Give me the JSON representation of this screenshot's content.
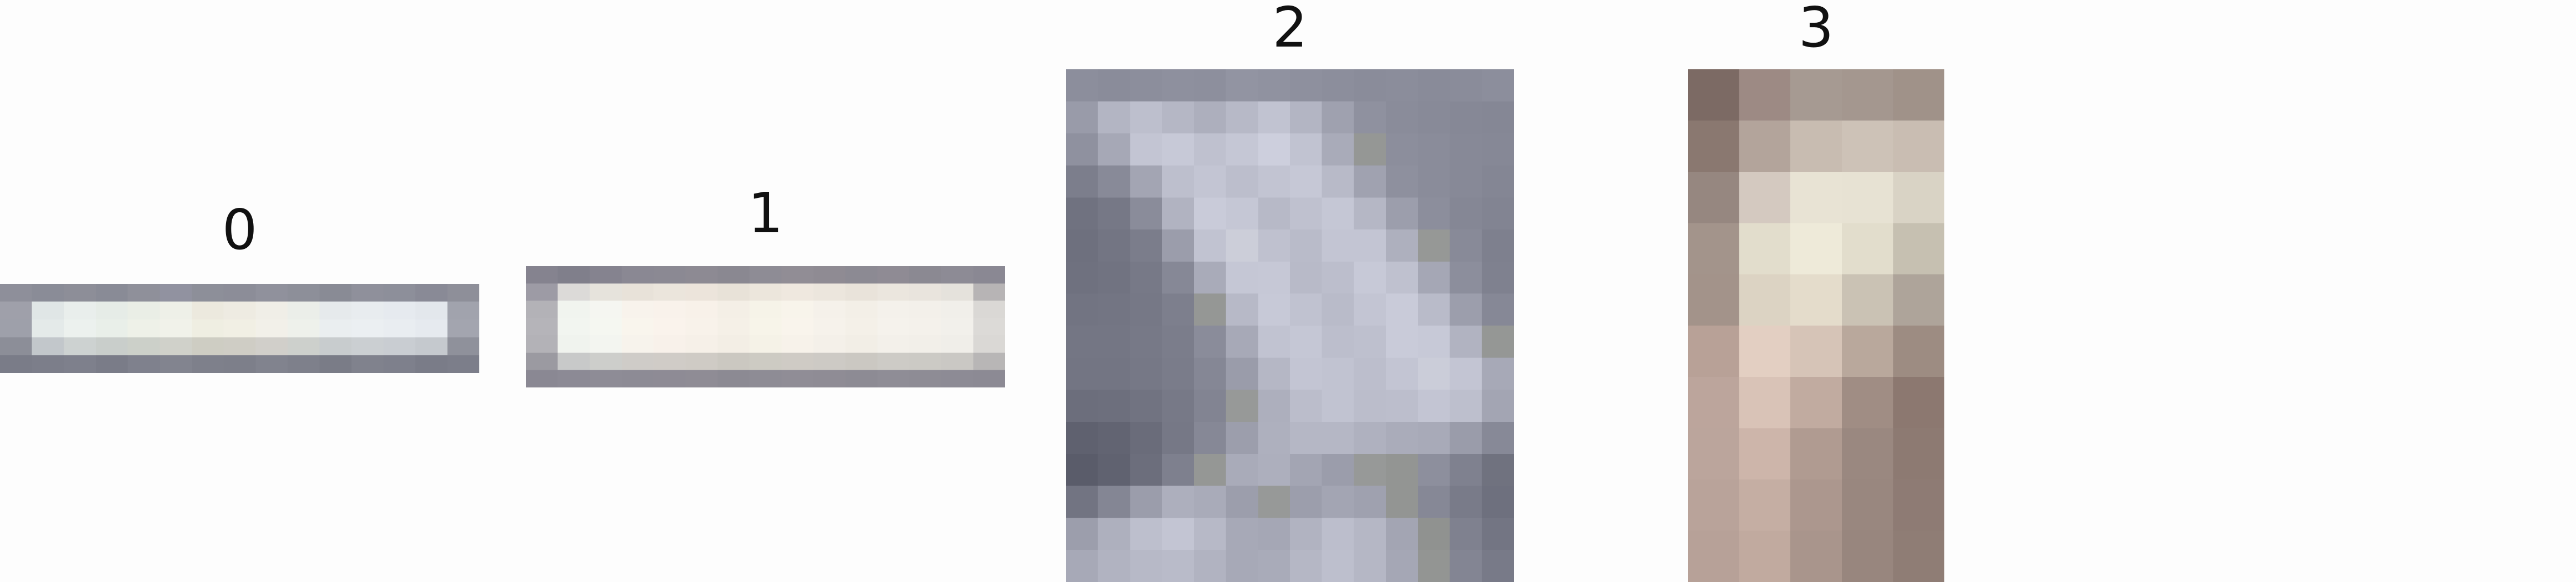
{
  "panels": [
    {
      "label": "0",
      "cols": 15,
      "pixels": [
        [
          "#8e8f9a",
          "#8a8c97",
          "#8d8e98",
          "#898b96",
          "#8f909a",
          "#9192a0",
          "#8d8f99",
          "#8c8d98",
          "#90919c",
          "#8d8f99",
          "#898b95",
          "#8f909b",
          "#8d8f9a",
          "#898a96",
          "#8e8f99"
        ],
        [
          "#9fa0aa",
          "#e0e6e6",
          "#e9eeec",
          "#e6ece7",
          "#eaeee6",
          "#eef0e8",
          "#ece9de",
          "#eeebe2",
          "#f0eee7",
          "#ebeee9",
          "#e6eaec",
          "#e8ecef",
          "#e6eaef",
          "#e3e7ec",
          "#a1a3ad"
        ],
        [
          "#9ea0aa",
          "#e4eae9",
          "#ecf1ee",
          "#e9efe9",
          "#eef1e8",
          "#f1f2ea",
          "#efeee2",
          "#f1efe4",
          "#f2f0e9",
          "#eef1eb",
          "#eaeef0",
          "#ebeff2",
          "#e9edf1",
          "#e6eaef",
          "#a3a5af"
        ],
        [
          "#8c8e98",
          "#c2c7cb",
          "#cdd2d1",
          "#c9cecb",
          "#ccd0c9",
          "#d0d1ca",
          "#cecdc3",
          "#cfcdc5",
          "#d1cfca",
          "#cdd0cc",
          "#c8ccce",
          "#cbcfd2",
          "#c9cdd2",
          "#c5c9ce",
          "#8f919b"
        ],
        [
          "#7a7c88",
          "#7c7e8a",
          "#7e808c",
          "#7a7c88",
          "#7f818d",
          "#82848f",
          "#7e808b",
          "#7d7f8a",
          "#81838e",
          "#7e808b",
          "#7a7c87",
          "#80828d",
          "#7e808c",
          "#7a7c88",
          "#7c7e8a"
        ]
      ]
    },
    {
      "label": "1",
      "cols": 15,
      "pixels": [
        [
          "#85838f",
          "#807f8b",
          "#85838f",
          "#8a8893",
          "#8b8993",
          "#8d8a93",
          "#8a8891",
          "#8e8c95",
          "#918d95",
          "#8f8b93",
          "#8c8a93",
          "#8f8b94",
          "#8b8992",
          "#8d8b95",
          "#8a8893"
        ],
        [
          "#9d9ba5",
          "#dcdad8",
          "#e6e3dc",
          "#e8e2d9",
          "#ebe5dc",
          "#ece4db",
          "#e8e2d8",
          "#ece6dc",
          "#efe8df",
          "#ece6dd",
          "#e9e3da",
          "#ebe6de",
          "#e9e4dd",
          "#e5e2dc",
          "#b7b4b5"
        ],
        [
          "#b3b2b7",
          "#f1f4ef",
          "#f5f6f1",
          "#f8f3ec",
          "#f9f2eb",
          "#f8f1e9",
          "#f4efe6",
          "#f6f3e8",
          "#f8f4eb",
          "#f5f1ea",
          "#f3efe7",
          "#f4f1eb",
          "#f3f0ea",
          "#f1efea",
          "#dad8d5"
        ],
        [
          "#b5b4b9",
          "#f2f5f0",
          "#f5f7f1",
          "#f9f5ed",
          "#faf3ec",
          "#f8f2ea",
          "#f5f0e7",
          "#f7f4e9",
          "#f9f4ec",
          "#f6f2eb",
          "#f4f0e8",
          "#f5f2ec",
          "#f4f1eb",
          "#f2f0eb",
          "#dcdad7"
        ],
        [
          "#b3b2b7",
          "#f0f3ee",
          "#f3f5f0",
          "#f7f3ec",
          "#f8f1ea",
          "#f6f0e8",
          "#f3eee5",
          "#f5f2e7",
          "#f7f2ea",
          "#f4f0e9",
          "#f2eee6",
          "#f3f0ea",
          "#f2efe9",
          "#f0eee9",
          "#dad8d5"
        ],
        [
          "#9b9aa1",
          "#c8c9c9",
          "#cdcecb",
          "#cfccc8",
          "#d0ccc7",
          "#cfcbc5",
          "#cbc8c1",
          "#cdcbc3",
          "#cfcbc5",
          "#cdcac5",
          "#cbc8c2",
          "#cdcbc6",
          "#cccac5",
          "#cac8c4",
          "#b8b6b6"
        ],
        [
          "#8a8893",
          "#8c8a95",
          "#8e8c96",
          "#8d8b95",
          "#8e8b95",
          "#8f8c95",
          "#8c8a93",
          "#8e8c95",
          "#908d96",
          "#8f8c95",
          "#8d8b94",
          "#8f8d96",
          "#8e8c95",
          "#8d8b95",
          "#8c8a94"
        ]
      ]
    },
    {
      "label": "2",
      "cols": 14,
      "pixels": [
        [
          "#8c8e9c",
          "#8a8c9a",
          "#8c8e9c",
          "#8e909e",
          "#8d8f9d",
          "#9294a2",
          "#9092a0",
          "#8e909e",
          "#8c8e9c",
          "#8a8c9a",
          "#8b8d9b",
          "#898b99",
          "#8a8c9a",
          "#8c8e9c"
        ],
        [
          "#999ba9",
          "#b3b5c3",
          "#bdbfcd",
          "#b5b7c5",
          "#adafbd",
          "#b7b9c7",
          "#c1c3d1",
          "#b3b5c3",
          "#9fa1af",
          "#8f919f",
          "#8a8c9a",
          "#888a98",
          "#868896",
          "#858795"
        ],
        [
          "#8f919f",
          "#a6a8b6",
          "#c3c5d3",
          "#c7c9d7",
          "#bfc1cf",
          "#c5c7d5",
          "#cdcfdd",
          "#c1c3d1",
          "#a9abb9",
          "#959795",
          "#8c8e9c",
          "#8a8c9a",
          "#878997",
          "#868896"
        ],
        [
          "#7c7e8c",
          "#888a98",
          "#a3a5b3",
          "#bdbfcd",
          "#c3c5d3",
          "#bcbecc",
          "#c2c4d2",
          "#c6c8d6",
          "#b8bac8",
          "#a0a2b0",
          "#8e909e",
          "#8a8c9a",
          "#878997",
          "#848694"
        ],
        [
          "#707280",
          "#767886",
          "#8a8c9a",
          "#b1b3c1",
          "#c9cbd9",
          "#c5c7d5",
          "#b7b9c7",
          "#bfc1cf",
          "#c5c7d5",
          "#b5b7c5",
          "#9c9eac",
          "#8c8e9c",
          "#858795",
          "#828492"
        ],
        [
          "#6e707e",
          "#737583",
          "#7b7d8b",
          "#9b9dab",
          "#c1c3d1",
          "#ccced9",
          "#bfc1cf",
          "#b9bbc9",
          "#c3c5d3",
          "#c3c5d3",
          "#aeb0be",
          "#969896",
          "#888a98",
          "#7e808e"
        ],
        [
          "#6f717f",
          "#717381",
          "#777987",
          "#868896",
          "#a9abb9",
          "#c5c7d5",
          "#c6c8d6",
          "#b8bac8",
          "#bcbecc",
          "#c7c9d7",
          "#bfc1cf",
          "#a5a7b5",
          "#8c8e9c",
          "#7f818f"
        ],
        [
          "#727482",
          "#737583",
          "#767886",
          "#7d7f8d",
          "#959795",
          "#b7b9c7",
          "#c7c9d7",
          "#c0c2d0",
          "#b9bbc9",
          "#c3c5d3",
          "#c9cbd9",
          "#b9bbc9",
          "#9c9eac",
          "#868896"
        ],
        [
          "#747684",
          "#747684",
          "#777987",
          "#7b7d8b",
          "#8a8c9a",
          "#a7a9b7",
          "#c1c3d1",
          "#c5c7d5",
          "#bcbecc",
          "#bec0ce",
          "#c9cbd9",
          "#c7c9d7",
          "#b1b3c1",
          "#959795"
        ],
        [
          "#737583",
          "#737583",
          "#767886",
          "#7a7c8a",
          "#858795",
          "#9a9caa",
          "#b5b7c5",
          "#c3c5d3",
          "#c1c3d1",
          "#bcbecc",
          "#c3c5d3",
          "#cbcdd9",
          "#c3c5d3",
          "#a7a9b7"
        ],
        [
          "#6c6e7c",
          "#6d6f7d",
          "#717381",
          "#777987",
          "#828492",
          "#979998",
          "#adafbd",
          "#bbbdcb",
          "#c1c3d1",
          "#bbbdcb",
          "#bcbecc",
          "#c3c5d3",
          "#bdbfcd",
          "#a3a5b3"
        ],
        [
          "#5f616f",
          "#626472",
          "#6a6c7a",
          "#767886",
          "#868896",
          "#9c9eac",
          "#aeb0be",
          "#b5b7c5",
          "#b5b7c5",
          "#afb1bf",
          "#aaacba",
          "#a8aab8",
          "#9a9caa",
          "#878997"
        ],
        [
          "#5a5c6a",
          "#606270",
          "#6c6e7c",
          "#7e808e",
          "#959795",
          "#a9abb9",
          "#adafbd",
          "#a3a5b3",
          "#9b9dab",
          "#979998",
          "#939593",
          "#8d8f9d",
          "#7f818f",
          "#70727f"
        ],
        [
          "#727482",
          "#848694",
          "#9b9dab",
          "#adafbd",
          "#a9abb9",
          "#9c9eac",
          "#979998",
          "#9c9eac",
          "#a3a5b3",
          "#9fa1af",
          "#939593",
          "#868896",
          "#797b89",
          "#6e707e"
        ],
        [
          "#9c9eac",
          "#aeb0be",
          "#bdbfcd",
          "#c3c5d3",
          "#b7b9c7",
          "#a7a9b7",
          "#a5a7b5",
          "#b1b3c1",
          "#bcbecc",
          "#b5b7c5",
          "#a3a5b3",
          "#909290",
          "#7f818f",
          "#737583"
        ],
        [
          "#a7a9b7",
          "#b1b3c1",
          "#b7b9c7",
          "#b9bbc9",
          "#b1b3c1",
          "#a7a9b7",
          "#a9abb9",
          "#b5b7c5",
          "#bdbfcd",
          "#b5b7c5",
          "#a5a7b5",
          "#939593",
          "#838593",
          "#787a88"
        ]
      ]
    },
    {
      "label": "3",
      "cols": 5,
      "pixels": [
        [
          "#7c6a64",
          "#9d8a84",
          "#a69a92",
          "#a4978f",
          "#a09289"
        ],
        [
          "#8a7870",
          "#b3a49b",
          "#c8bcb1",
          "#cdc2b7",
          "#c9bdb2"
        ],
        [
          "#968780",
          "#d4c9c0",
          "#e8e3d4",
          "#e7e2d3",
          "#d9d3c5"
        ],
        [
          "#a3948b",
          "#e2ddcc",
          "#eeead9",
          "#e2ddcc",
          "#c6c0b1"
        ],
        [
          "#a3938a",
          "#dcd3c3",
          "#e4dccb",
          "#cac2b4",
          "#aea49a"
        ],
        [
          "#b8a197",
          "#e3cfc2",
          "#d6c4b7",
          "#b9a89c",
          "#9d8c82"
        ],
        [
          "#bca59c",
          "#d9c3b7",
          "#c1aba0",
          "#a08d84",
          "#8c7870"
        ],
        [
          "#bba59c",
          "#cdb5aa",
          "#b09b91",
          "#9a8880",
          "#8d7a72"
        ],
        [
          "#b9a39a",
          "#c5aea3",
          "#ac978e",
          "#99877f",
          "#8e7b74"
        ],
        [
          "#b7a198",
          "#c1aa9f",
          "#a9958c",
          "#98867e",
          "#8f7d75"
        ]
      ]
    }
  ]
}
